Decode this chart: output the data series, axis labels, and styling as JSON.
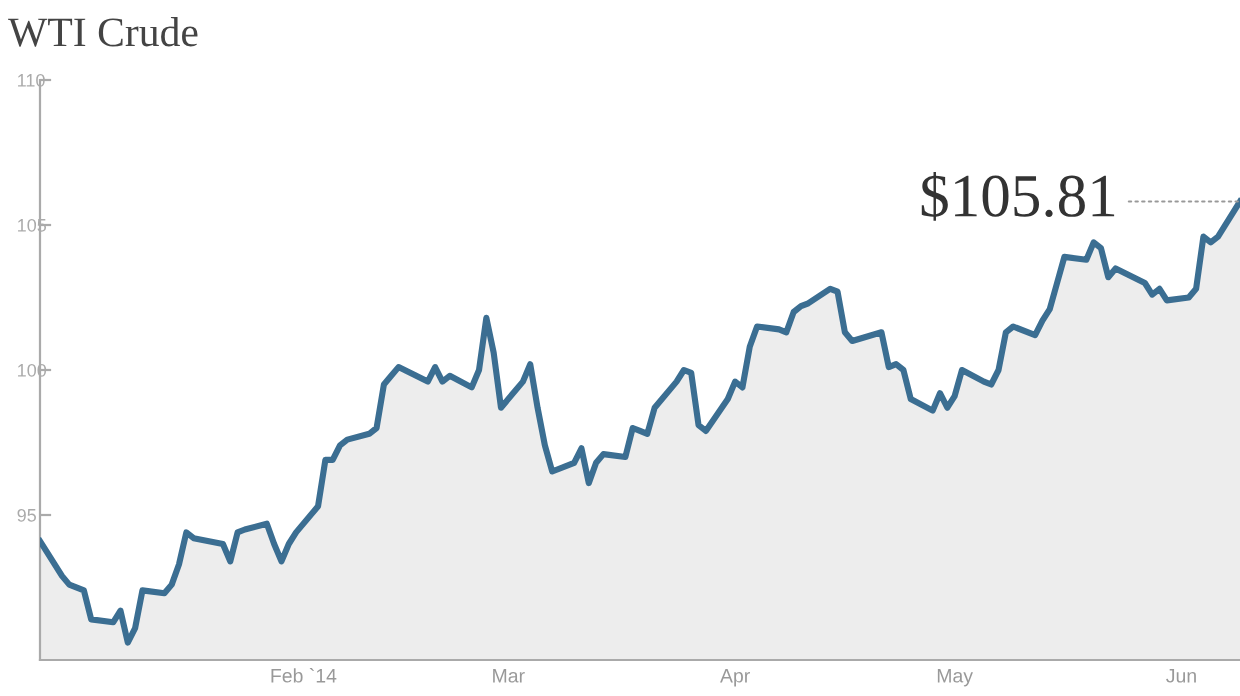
{
  "chart_data": {
    "type": "area",
    "title": "WTI Crude",
    "x": [
      "2013-12-27",
      "2013-12-30",
      "2013-12-31",
      "2014-01-02",
      "2014-01-03",
      "2014-01-06",
      "2014-01-07",
      "2014-01-08",
      "2014-01-09",
      "2014-01-10",
      "2014-01-13",
      "2014-01-14",
      "2014-01-15",
      "2014-01-16",
      "2014-01-17",
      "2014-01-21",
      "2014-01-22",
      "2014-01-23",
      "2014-01-24",
      "2014-01-27",
      "2014-01-28",
      "2014-01-29",
      "2014-01-30",
      "2014-01-31",
      "2014-02-03",
      "2014-02-04",
      "2014-02-05",
      "2014-02-06",
      "2014-02-07",
      "2014-02-10",
      "2014-02-11",
      "2014-02-12",
      "2014-02-13",
      "2014-02-14",
      "2014-02-18",
      "2014-02-19",
      "2014-02-20",
      "2014-02-21",
      "2014-02-24",
      "2014-02-25",
      "2014-02-26",
      "2014-02-27",
      "2014-02-28",
      "2014-03-03",
      "2014-03-04",
      "2014-03-05",
      "2014-03-06",
      "2014-03-07",
      "2014-03-10",
      "2014-03-11",
      "2014-03-12",
      "2014-03-13",
      "2014-03-14",
      "2014-03-17",
      "2014-03-18",
      "2014-03-19",
      "2014-03-20",
      "2014-03-21",
      "2014-03-24",
      "2014-03-25",
      "2014-03-26",
      "2014-03-27",
      "2014-03-28",
      "2014-03-31",
      "2014-04-01",
      "2014-04-02",
      "2014-04-03",
      "2014-04-04",
      "2014-04-07",
      "2014-04-08",
      "2014-04-09",
      "2014-04-10",
      "2014-04-11",
      "2014-04-14",
      "2014-04-15",
      "2014-04-16",
      "2014-04-17",
      "2014-04-21",
      "2014-04-22",
      "2014-04-23",
      "2014-04-24",
      "2014-04-25",
      "2014-04-28",
      "2014-04-29",
      "2014-04-30",
      "2014-05-01",
      "2014-05-02",
      "2014-05-05",
      "2014-05-06",
      "2014-05-07",
      "2014-05-08",
      "2014-05-09",
      "2014-05-12",
      "2014-05-13",
      "2014-05-14",
      "2014-05-15",
      "2014-05-16",
      "2014-05-19",
      "2014-05-20",
      "2014-05-21",
      "2014-05-22",
      "2014-05-23",
      "2014-05-27",
      "2014-05-28",
      "2014-05-29",
      "2014-05-30",
      "2014-06-02",
      "2014-06-03",
      "2014-06-04",
      "2014-06-05",
      "2014-06-06",
      "2014-06-09"
    ],
    "series": [
      {
        "color": "#3b6e92",
        "values": [
          94.1,
          92.9,
          92.6,
          92.4,
          91.4,
          91.3,
          91.7,
          90.6,
          91.1,
          92.4,
          92.3,
          92.6,
          93.3,
          94.4,
          94.2,
          94.0,
          93.4,
          94.4,
          94.5,
          94.7,
          94.0,
          93.4,
          94.0,
          94.4,
          95.3,
          96.9,
          96.9,
          97.4,
          97.6,
          97.8,
          98.0,
          99.5,
          99.8,
          100.1,
          99.6,
          100.1,
          99.6,
          99.8,
          99.4,
          100.0,
          101.8,
          100.6,
          98.7,
          99.6,
          100.2,
          98.7,
          97.4,
          96.5,
          96.8,
          97.3,
          96.1,
          96.8,
          97.1,
          97.0,
          98.0,
          97.9,
          97.8,
          98.7,
          99.6,
          100.0,
          99.9,
          98.1,
          97.9,
          99.0,
          99.6,
          99.4,
          100.8,
          101.5,
          101.4,
          101.3,
          102.0,
          102.2,
          102.3,
          102.8,
          102.7,
          101.3,
          101.0,
          101.3,
          100.1,
          100.2,
          100.0,
          99.0,
          98.6,
          99.2,
          98.7,
          99.1,
          100.0,
          99.6,
          99.5,
          100.0,
          101.3,
          101.5,
          101.2,
          101.7,
          102.1,
          103.0,
          103.9,
          103.8,
          104.4,
          104.2,
          103.2,
          103.5,
          103.0,
          102.6,
          102.8,
          102.4,
          102.5,
          102.8,
          104.6,
          104.4,
          104.6,
          105.81
        ]
      }
    ],
    "xlim": [
      "2013-12-27",
      "2014-06-09"
    ],
    "xticks": [
      {
        "value": "2014-02-01",
        "label": "Feb `14"
      },
      {
        "value": "2014-03-01",
        "label": "Mar"
      },
      {
        "value": "2014-04-01",
        "label": "Apr"
      },
      {
        "value": "2014-05-01",
        "label": "May"
      },
      {
        "value": "2014-06-01",
        "label": "Jun"
      }
    ],
    "ylim": [
      90,
      110
    ],
    "yticks": [
      95,
      100,
      105,
      110
    ],
    "grid": false,
    "marker": "none",
    "line_style": "solid",
    "annotations": [
      {
        "text": "$105.81",
        "x": "2014-06-09",
        "y": 105.81
      }
    ]
  }
}
